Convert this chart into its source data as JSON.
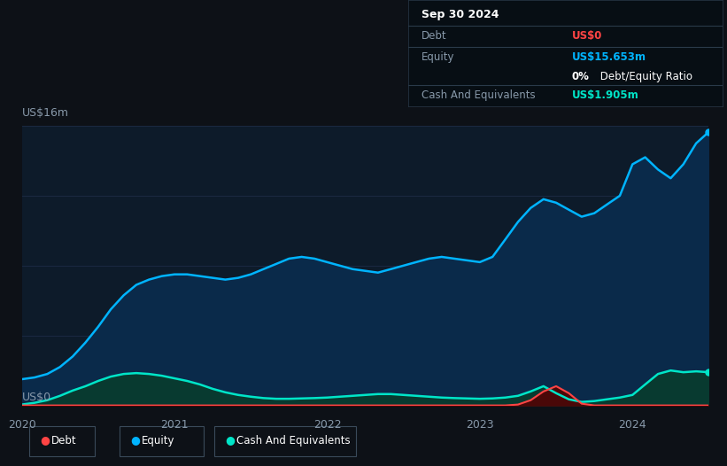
{
  "bg_color": "#0d1117",
  "plot_bg_color": "#0d1b2a",
  "tooltip": {
    "date": "Sep 30 2024",
    "debt_label": "Debt",
    "debt_value": "US$0",
    "equity_label": "Equity",
    "equity_value": "US$15.653m",
    "ratio_value": "0% Debt/Equity Ratio",
    "cash_label": "Cash And Equivalents",
    "cash_value": "US$1.905m"
  },
  "ylabel_top": "US$16m",
  "ylabel_bottom": "US$0",
  "x_ticks": [
    "2020",
    "2021",
    "2022",
    "2023",
    "2024"
  ],
  "x_tick_positions": [
    0,
    1,
    2,
    3,
    4
  ],
  "legend": [
    {
      "label": "Debt",
      "color": "#ff4444"
    },
    {
      "label": "Equity",
      "color": "#00b4ff"
    },
    {
      "label": "Cash And Equivalents",
      "color": "#00e5c8"
    }
  ],
  "equity_color": "#00b4ff",
  "equity_fill": "#0a2a4a",
  "debt_color": "#ff4444",
  "debt_fill": "#4a0808",
  "cash_color": "#00e5c8",
  "cash_fill": "#083a30",
  "grid_color": "#1a2840",
  "text_color": "#8899aa",
  "max_val": 16,
  "x_data": [
    0.0,
    0.083,
    0.167,
    0.25,
    0.333,
    0.417,
    0.5,
    0.583,
    0.667,
    0.75,
    0.833,
    0.917,
    1.0,
    1.083,
    1.167,
    1.25,
    1.333,
    1.417,
    1.5,
    1.583,
    1.667,
    1.75,
    1.833,
    1.917,
    2.0,
    2.083,
    2.167,
    2.25,
    2.333,
    2.417,
    2.5,
    2.583,
    2.667,
    2.75,
    2.833,
    2.917,
    3.0,
    3.083,
    3.167,
    3.25,
    3.333,
    3.417,
    3.5,
    3.583,
    3.667,
    3.75,
    3.833,
    3.917,
    4.0,
    4.083,
    4.167,
    4.25,
    4.333,
    4.417,
    4.5
  ],
  "equity_data": [
    1.5,
    1.6,
    1.8,
    2.2,
    2.8,
    3.6,
    4.5,
    5.5,
    6.3,
    6.9,
    7.2,
    7.4,
    7.5,
    7.5,
    7.4,
    7.3,
    7.2,
    7.3,
    7.5,
    7.8,
    8.1,
    8.4,
    8.5,
    8.4,
    8.2,
    8.0,
    7.8,
    7.7,
    7.6,
    7.8,
    8.0,
    8.2,
    8.4,
    8.5,
    8.4,
    8.3,
    8.2,
    8.5,
    9.5,
    10.5,
    11.3,
    11.8,
    11.6,
    11.2,
    10.8,
    11.0,
    11.5,
    12.0,
    13.8,
    14.2,
    13.5,
    13.0,
    13.8,
    15.0,
    15.653
  ],
  "debt_data": [
    0.0,
    0.0,
    0.0,
    0.0,
    0.0,
    0.0,
    0.0,
    0.0,
    0.0,
    0.0,
    0.0,
    0.0,
    0.0,
    0.0,
    0.0,
    0.0,
    0.0,
    0.0,
    0.0,
    0.0,
    0.0,
    0.0,
    0.0,
    0.0,
    0.0,
    0.0,
    0.0,
    0.0,
    0.0,
    0.0,
    0.0,
    0.0,
    0.0,
    0.0,
    0.0,
    0.0,
    0.0,
    0.0,
    0.0,
    0.05,
    0.3,
    0.8,
    1.1,
    0.7,
    0.1,
    0.0,
    0.0,
    0.0,
    0.0,
    0.0,
    0.0,
    0.0,
    0.0,
    0.0,
    0.0
  ],
  "cash_data": [
    0.05,
    0.15,
    0.3,
    0.55,
    0.85,
    1.1,
    1.4,
    1.65,
    1.8,
    1.85,
    1.8,
    1.7,
    1.55,
    1.4,
    1.2,
    0.95,
    0.75,
    0.6,
    0.5,
    0.42,
    0.38,
    0.38,
    0.4,
    0.42,
    0.45,
    0.5,
    0.55,
    0.6,
    0.65,
    0.65,
    0.6,
    0.55,
    0.5,
    0.45,
    0.42,
    0.4,
    0.38,
    0.4,
    0.45,
    0.55,
    0.8,
    1.1,
    0.7,
    0.35,
    0.2,
    0.25,
    0.35,
    0.45,
    0.6,
    1.2,
    1.8,
    2.0,
    1.9,
    1.95,
    1.9
  ]
}
